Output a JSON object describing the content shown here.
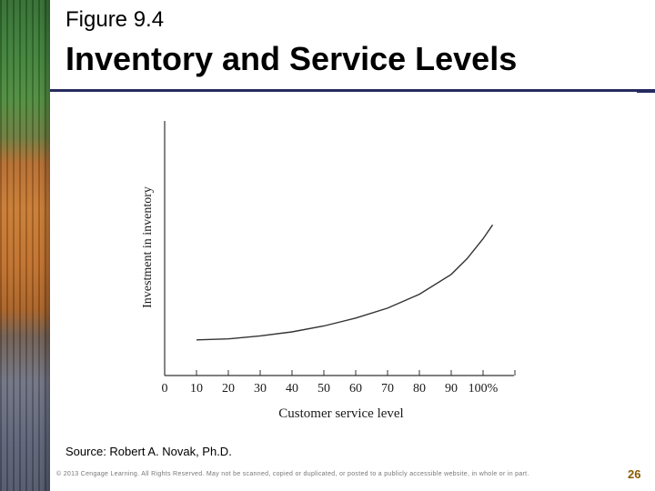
{
  "slide": {
    "figure_label": "Figure 9.4",
    "title": "Inventory and Service Levels",
    "source": "Source: Robert A. Novak, Ph.D.",
    "copyright": "© 2013 Cengage Learning. All Rights Reserved. May not be scanned, copied or duplicated, or posted to a publicly accessible website, in whole or in part.",
    "page_number": "26"
  },
  "colors": {
    "title_rule": "#262b5e",
    "curve": "#333333",
    "page_number": "#8a5a00"
  },
  "chart_data": {
    "type": "line",
    "title": "",
    "xlabel": "Customer service level",
    "ylabel": "Investment in inventory",
    "x_ticks": [
      0,
      10,
      20,
      30,
      40,
      50,
      60,
      70,
      80,
      90,
      100
    ],
    "x_tick_labels": [
      "0",
      "10",
      "20",
      "30",
      "40",
      "50",
      "60",
      "70",
      "80",
      "90",
      "100%"
    ],
    "xlim": [
      0,
      110
    ],
    "ylim": [
      0,
      100
    ],
    "y_ticks_shown": false,
    "grid": false,
    "series": [
      {
        "x": [
          10,
          20,
          30,
          40,
          50,
          60,
          70,
          80,
          90,
          95,
          100,
          103
        ],
        "y": [
          18,
          18.5,
          20,
          22,
          25,
          29,
          34,
          41,
          51,
          59,
          69,
          76
        ]
      }
    ]
  }
}
